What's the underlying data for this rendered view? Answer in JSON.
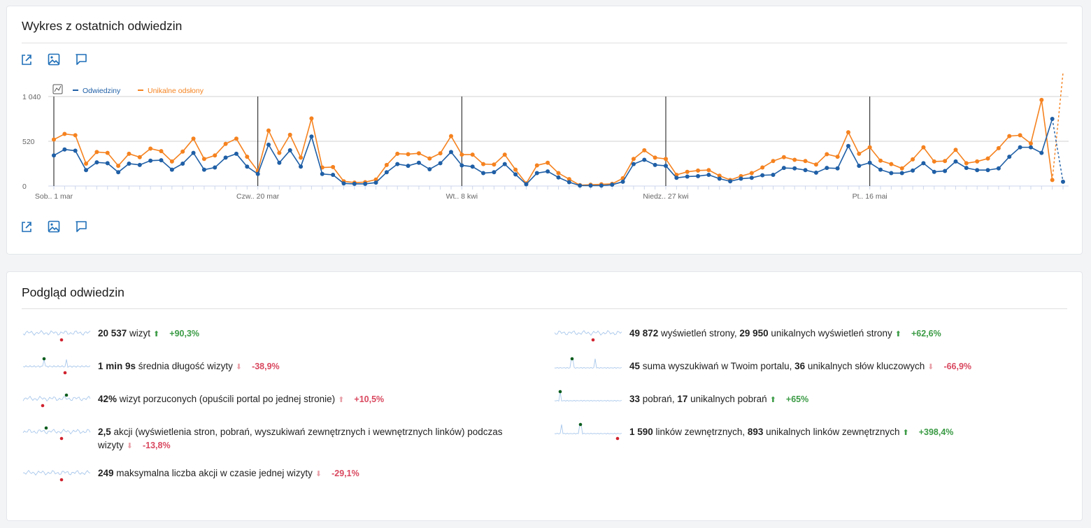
{
  "graph_card": {
    "title": "Wykres z ostatnich odwiedzin",
    "icons": [
      "export-icon",
      "image-icon",
      "annotation-icon"
    ]
  },
  "chart_data": {
    "type": "line",
    "ylim": [
      0,
      1040
    ],
    "yticks": [
      "1 040",
      "520",
      "0"
    ],
    "ytick_values": [
      1040,
      520,
      0
    ],
    "xtick_labels": [
      {
        "index": 0,
        "label": "Sob., 1 mar"
      },
      {
        "index": 19,
        "label": "Czw., 20 mar"
      },
      {
        "index": 38,
        "label": "Wt., 8 kwi"
      },
      {
        "index": 57,
        "label": "Niedz., 27 kwi"
      },
      {
        "index": 76,
        "label": "Pt., 16 maj"
      }
    ],
    "week_markers": [
      0,
      19,
      38,
      57,
      76
    ],
    "series": [
      {
        "name": "Odwiedziny",
        "color": "#1f5fa6",
        "values": [
          355,
          425,
          410,
          185,
          275,
          265,
          160,
          260,
          245,
          295,
          300,
          190,
          260,
          385,
          190,
          215,
          330,
          375,
          225,
          140,
          480,
          270,
          415,
          225,
          575,
          140,
          130,
          30,
          25,
          25,
          40,
          160,
          255,
          235,
          270,
          195,
          265,
          395,
          240,
          225,
          150,
          160,
          255,
          135,
          20,
          150,
          170,
          100,
          45,
          5,
          5,
          5,
          15,
          50,
          255,
          305,
          245,
          235,
          95,
          110,
          115,
          130,
          85,
          55,
          85,
          95,
          125,
          130,
          210,
          205,
          185,
          155,
          210,
          205,
          465,
          235,
          270,
          190,
          150,
          150,
          180,
          265,
          165,
          175,
          285,
          210,
          185,
          185,
          205,
          340,
          450,
          450,
          385,
          780,
          50
        ]
      },
      {
        "name": "Unikalne odsłony",
        "color": "#f5821f",
        "values": [
          540,
          605,
          590,
          260,
          395,
          385,
          235,
          375,
          335,
          435,
          405,
          285,
          400,
          550,
          315,
          355,
          490,
          550,
          340,
          175,
          645,
          385,
          595,
          330,
          785,
          215,
          220,
          55,
          40,
          45,
          75,
          245,
          375,
          370,
          380,
          320,
          380,
          580,
          365,
          365,
          255,
          250,
          365,
          190,
          30,
          240,
          270,
          150,
          80,
          10,
          15,
          20,
          25,
          90,
          315,
          415,
          330,
          315,
          130,
          165,
          180,
          185,
          120,
          70,
          115,
          150,
          215,
          290,
          335,
          305,
          290,
          250,
          370,
          340,
          625,
          375,
          450,
          295,
          255,
          205,
          310,
          450,
          285,
          290,
          420,
          265,
          285,
          320,
          440,
          580,
          590,
          495,
          1000,
          70
        ]
      }
    ]
  },
  "overview_card": {
    "title": "Podgląd odwiedzin",
    "metrics": [
      {
        "id": "visits",
        "parts": [
          {
            "b": "20 537"
          },
          {
            "t": " wizyt"
          }
        ],
        "trend": "up",
        "pct": "+90,3%"
      },
      {
        "id": "avg-duration",
        "parts": [
          {
            "b": "1 min 9s"
          },
          {
            "t": " średnia długość wizyty"
          }
        ],
        "trend": "down",
        "pct": "-38,9%"
      },
      {
        "id": "bounce",
        "parts": [
          {
            "b": "42%"
          },
          {
            "t": " wizyt porzuconych (opuścili portal po jednej stronie)"
          }
        ],
        "trend": "up-bad",
        "pct": "+10,5%"
      },
      {
        "id": "actions",
        "parts": [
          {
            "b": "2,5"
          },
          {
            "t": " akcji (wyświetlenia stron, pobrań, wyszukiwań zewnętrznych i wewnętrznych linków) podczas wizyty"
          }
        ],
        "trend": "down",
        "pct": "-13,8%"
      },
      {
        "id": "max-actions",
        "parts": [
          {
            "b": "249"
          },
          {
            "t": " maksymalna liczba akcji w czasie jednej wizyty"
          }
        ],
        "trend": "down",
        "pct": "-29,1%"
      },
      {
        "id": "pageviews",
        "parts": [
          {
            "b": "49 872"
          },
          {
            "t": " wyświetleń strony, "
          },
          {
            "b": "29 950"
          },
          {
            "t": " unikalnych wyświetleń strony"
          }
        ],
        "trend": "up",
        "pct": "+62,6%"
      },
      {
        "id": "searches",
        "parts": [
          {
            "b": "45"
          },
          {
            "t": " suma wyszukiwań w Twoim portalu, "
          },
          {
            "b": "36"
          },
          {
            "t": " unikalnych słów kluczowych"
          }
        ],
        "trend": "down",
        "pct": "-66,9%"
      },
      {
        "id": "downloads",
        "parts": [
          {
            "b": "33"
          },
          {
            "t": " pobrań, "
          },
          {
            "b": "17"
          },
          {
            "t": " unikalnych pobrań"
          }
        ],
        "trend": "up",
        "pct": "+65%"
      },
      {
        "id": "outlinks",
        "parts": [
          {
            "b": "1 590"
          },
          {
            "t": " linków zewnętrznych, "
          },
          {
            "b": "893"
          },
          {
            "t": " unikalnych linków zewnętrznych"
          }
        ],
        "trend": "up",
        "pct": "+398,4%"
      }
    ]
  }
}
